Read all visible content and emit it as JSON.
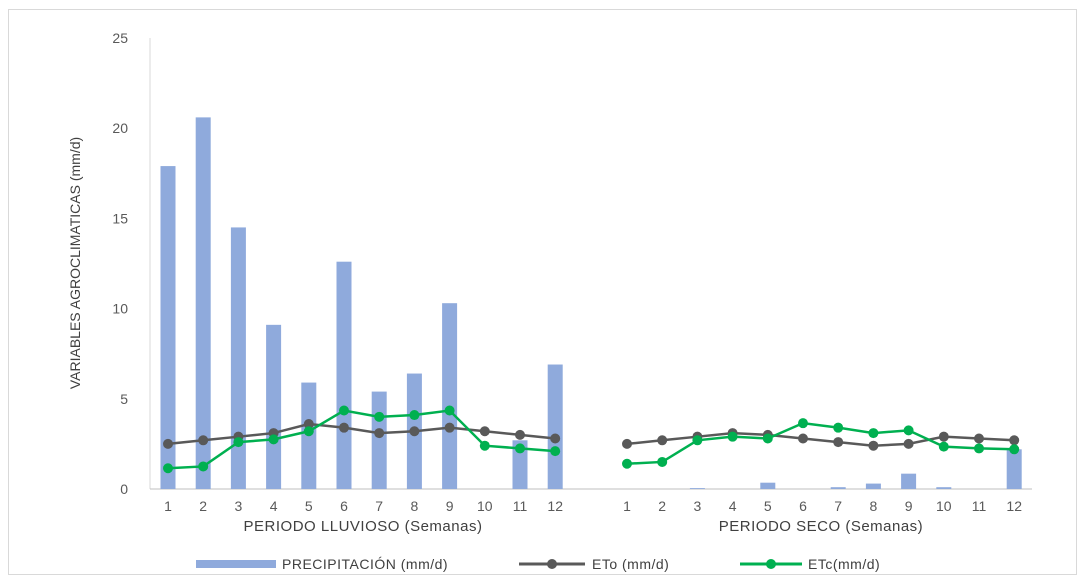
{
  "chart_data": {
    "type": "bar+line",
    "ylabel": "VARIABLES AGROCLIMATICAS (mm/d)",
    "ylim": [
      0,
      25
    ],
    "yticks": [
      "0",
      "5",
      "10",
      "15",
      "20",
      "25"
    ],
    "grid": false,
    "legend_placement": "bottom",
    "groups": [
      {
        "label": "PERIODO LLUVIOSO (Semanas)",
        "categories": [
          "1",
          "2",
          "3",
          "4",
          "5",
          "6",
          "7",
          "8",
          "9",
          "10",
          "11",
          "12"
        ]
      },
      {
        "label": "PERIODO SECO (Semanas)",
        "categories": [
          "1",
          "2",
          "3",
          "4",
          "5",
          "6",
          "7",
          "8",
          "9",
          "10",
          "11",
          "12"
        ]
      }
    ],
    "series": [
      {
        "name": "PRECIPITACIÓN (mm/d)",
        "kind": "bar",
        "color": "#8faadc",
        "values": [
          17.9,
          20.6,
          14.5,
          9.1,
          5.9,
          12.6,
          5.4,
          6.4,
          10.3,
          0.0,
          2.7,
          6.9,
          0.0,
          0.0,
          0.05,
          0.0,
          0.35,
          0.0,
          0.1,
          0.3,
          0.85,
          0.1,
          0.0,
          2.2
        ]
      },
      {
        "name": "ETo (mm/d)",
        "kind": "line",
        "color": "#595959",
        "values": [
          2.5,
          2.7,
          2.9,
          3.1,
          3.6,
          3.4,
          3.1,
          3.2,
          3.4,
          3.2,
          3.0,
          2.8,
          2.5,
          2.7,
          2.9,
          3.1,
          3.0,
          2.8,
          2.6,
          2.4,
          2.5,
          2.9,
          2.8,
          2.7
        ]
      },
      {
        "name": "ETc(mm/d)",
        "kind": "line",
        "color": "#00b050",
        "values": [
          1.15,
          1.25,
          2.6,
          2.75,
          3.2,
          4.35,
          4.0,
          4.1,
          4.35,
          2.4,
          2.25,
          2.1,
          1.4,
          1.5,
          2.7,
          2.9,
          2.8,
          3.65,
          3.4,
          3.1,
          3.25,
          2.35,
          2.25,
          2.2
        ]
      }
    ]
  }
}
